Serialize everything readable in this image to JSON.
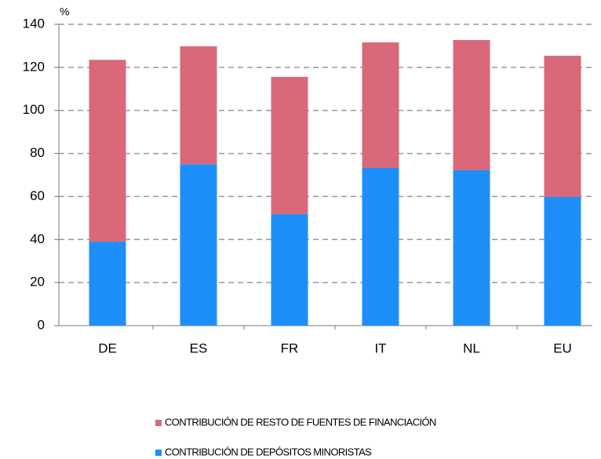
{
  "chart_data": {
    "type": "stacked_bar",
    "y_unit": "%",
    "categories": [
      "DE",
      "ES",
      "FR",
      "IT",
      "NL",
      "EU"
    ],
    "series": [
      {
        "name": "CONTRIBUCIÓN DE RESTO DE FUENTES DE FINANCIACIÓN",
        "color": "#d9697a",
        "values": [
          84.5,
          54.8,
          63.8,
          58.3,
          60.5,
          65.6
        ]
      },
      {
        "name": "CONTRIBUCIÓN DE DEPÓSITOS MINORISTAS",
        "color": "#1e8ffa",
        "values": [
          39,
          75,
          51.8,
          73.3,
          72.2,
          59.8
        ]
      }
    ],
    "ylim": [
      0,
      140
    ],
    "yticks": [
      0,
      20,
      40,
      60,
      80,
      100,
      120,
      140
    ],
    "grid": true
  }
}
